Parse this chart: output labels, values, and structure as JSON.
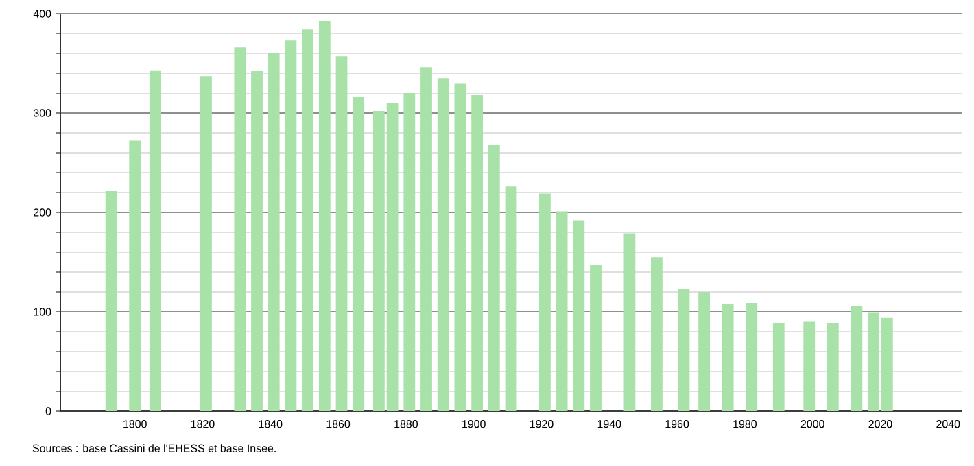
{
  "chart_data": {
    "type": "bar",
    "x": [
      1793,
      1800,
      1806,
      1821,
      1831,
      1836,
      1841,
      1846,
      1851,
      1856,
      1861,
      1866,
      1872,
      1876,
      1881,
      1886,
      1891,
      1896,
      1901,
      1906,
      1911,
      1921,
      1926,
      1931,
      1936,
      1946,
      1954,
      1962,
      1968,
      1975,
      1982,
      1990,
      1999,
      2006,
      2013,
      2018,
      2022
    ],
    "values": [
      222,
      272,
      343,
      337,
      366,
      342,
      360,
      373,
      384,
      393,
      357,
      316,
      302,
      310,
      320,
      346,
      335,
      330,
      318,
      268,
      226,
      219,
      201,
      192,
      147,
      179,
      155,
      123,
      120,
      108,
      109,
      89,
      90,
      89,
      106,
      99,
      94
    ],
    "color": "#a8e2a8",
    "xlim": [
      1778,
      2044
    ],
    "xticks": [
      1800,
      1820,
      1840,
      1860,
      1880,
      1900,
      1920,
      1940,
      1960,
      1980,
      2000,
      2020,
      2040
    ],
    "ylim": [
      0,
      400
    ],
    "yticks": [
      0,
      {
        "value": 20,
        "label": null
      },
      {
        "value": 40,
        "label": null
      },
      {
        "value": 60,
        "label": null
      },
      {
        "value": 80,
        "label": null
      },
      100,
      {
        "value": 120,
        "label": null
      },
      {
        "value": 140,
        "label": null
      },
      {
        "value": 160,
        "label": null
      },
      {
        "value": 180,
        "label": null
      },
      200,
      {
        "value": 220,
        "label": null
      },
      {
        "value": 240,
        "label": null
      },
      {
        "value": 260,
        "label": null
      },
      {
        "value": 280,
        "label": null
      },
      300,
      {
        "value": 320,
        "label": null
      },
      {
        "value": 340,
        "label": null
      },
      {
        "value": 360,
        "label": null
      },
      {
        "value": 380,
        "label": null
      },
      400
    ],
    "grid": "y",
    "annotations": [
      "Sources : base Cassini de l'EHESS et base Insee."
    ]
  }
}
